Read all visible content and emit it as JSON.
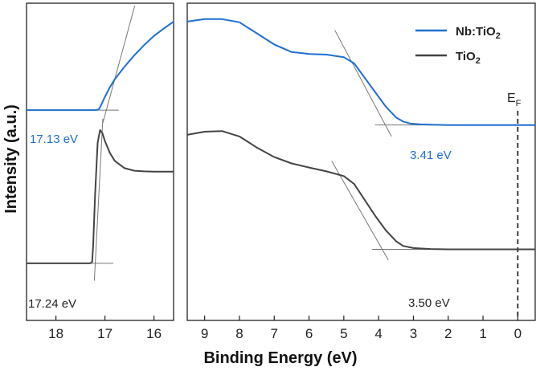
{
  "chart_data": [
    {
      "type": "line",
      "panel": "left",
      "xlabel": "Binding Energy (eV)",
      "ylabel": "Intensity (a.u.)",
      "xlim": [
        18.6,
        15.6
      ],
      "xticks": [
        "18",
        "17",
        "16"
      ],
      "ylim": [
        0,
        1
      ],
      "grid": false,
      "series": [
        {
          "name": "Nb:TiO2",
          "color": "#1f6fd1",
          "x": [
            18.6,
            17.5,
            17.2,
            17.13,
            17.1,
            17.0,
            16.9,
            16.8,
            16.6,
            16.4,
            16.2,
            16.0,
            15.8,
            15.6
          ],
          "y": [
            0.663,
            0.663,
            0.663,
            0.665,
            0.672,
            0.705,
            0.735,
            0.76,
            0.8,
            0.836,
            0.868,
            0.897,
            0.92,
            0.942
          ]
        },
        {
          "name": "TiO2",
          "color": "#444444",
          "x": [
            18.6,
            17.6,
            17.3,
            17.26,
            17.24,
            17.2,
            17.15,
            17.1,
            17.05,
            17.0,
            16.9,
            16.8,
            16.6,
            16.4,
            16.2,
            16.0,
            15.8,
            15.6
          ],
          "y": [
            0.18,
            0.18,
            0.18,
            0.185,
            0.24,
            0.4,
            0.56,
            0.6,
            0.59,
            0.565,
            0.528,
            0.503,
            0.48,
            0.472,
            0.47,
            0.469,
            0.469,
            0.469
          ]
        }
      ],
      "annotations": [
        {
          "text": "17.13 eV",
          "series": "Nb:TiO2",
          "value": 17.13
        },
        {
          "text": "17.24 eV",
          "series": "TiO2",
          "value": 17.24
        }
      ]
    },
    {
      "type": "line",
      "panel": "right",
      "xlabel": "Binding Energy (eV)",
      "xlim": [
        9.5,
        -0.5
      ],
      "xticks": [
        "9",
        "8",
        "7",
        "6",
        "5",
        "4",
        "3",
        "2",
        "1",
        "0"
      ],
      "ylim": [
        0,
        1
      ],
      "grid": false,
      "legend": "top-right",
      "series": [
        {
          "name": "Nb:TiO2",
          "color": "#1f6fd1",
          "x": [
            9.5,
            9.0,
            8.5,
            8.0,
            7.5,
            7.0,
            6.5,
            6.0,
            5.5,
            5.0,
            4.7,
            4.4,
            4.1,
            3.8,
            3.5,
            3.3,
            3.1,
            2.8,
            2.5,
            2.0,
            1.0,
            0.0,
            -0.5
          ],
          "y": [
            0.942,
            0.95,
            0.95,
            0.94,
            0.905,
            0.87,
            0.846,
            0.84,
            0.838,
            0.83,
            0.81,
            0.765,
            0.72,
            0.675,
            0.64,
            0.627,
            0.621,
            0.618,
            0.617,
            0.616,
            0.616,
            0.616,
            0.616
          ]
        },
        {
          "name": "TiO2",
          "color": "#444444",
          "x": [
            9.5,
            9.0,
            8.5,
            8.0,
            7.5,
            7.0,
            6.5,
            6.0,
            5.5,
            5.0,
            4.7,
            4.4,
            4.1,
            3.8,
            3.5,
            3.3,
            3.0,
            2.5,
            2.0,
            1.0,
            0.0,
            -0.5
          ],
          "y": [
            0.585,
            0.595,
            0.597,
            0.58,
            0.545,
            0.515,
            0.495,
            0.482,
            0.47,
            0.455,
            0.43,
            0.38,
            0.33,
            0.285,
            0.25,
            0.235,
            0.228,
            0.225,
            0.224,
            0.224,
            0.224,
            0.224
          ]
        }
      ],
      "annotations": [
        {
          "text": "3.41 eV",
          "series": "Nb:TiO2",
          "value": 3.41
        },
        {
          "text": "3.50 eV",
          "series": "TiO2",
          "value": 3.5
        }
      ],
      "fermi_level": {
        "x": 0,
        "label_main": "E",
        "label_sub": "F"
      }
    }
  ],
  "legend": {
    "items": [
      {
        "main": "Nb:TiO",
        "sub": "2",
        "color": "#1f6fd1"
      },
      {
        "main": "TiO",
        "sub": "2",
        "color": "#444444"
      }
    ]
  }
}
